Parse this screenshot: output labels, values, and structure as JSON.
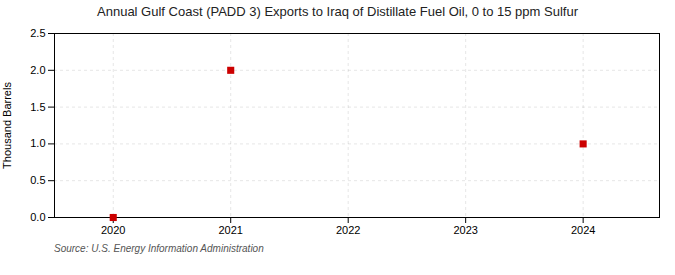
{
  "chart_data": {
    "type": "scatter",
    "title": "Annual Gulf Coast (PADD 3) Exports to Iraq of Distillate Fuel Oil, 0 to 15 ppm Sulfur",
    "ylabel": "Thousand Barrels",
    "annotations": [
      "Source: U.S. Energy Information Administration"
    ],
    "x": [
      2020,
      2021,
      2024
    ],
    "values": [
      0.0,
      2.0,
      1.0
    ],
    "color": "#cc0000",
    "marker": "square",
    "xlim": [
      2019.5,
      2024.65
    ],
    "ylim": [
      0,
      2.5
    ],
    "xticks": [
      2020,
      2021,
      2022,
      2023,
      2024
    ],
    "yticks": [
      {
        "value": 0,
        "label": "0.0"
      },
      0.5,
      {
        "value": 1,
        "label": "1.0"
      },
      1.5,
      {
        "value": 2,
        "label": "2.0"
      },
      2.5
    ],
    "grid": true
  }
}
